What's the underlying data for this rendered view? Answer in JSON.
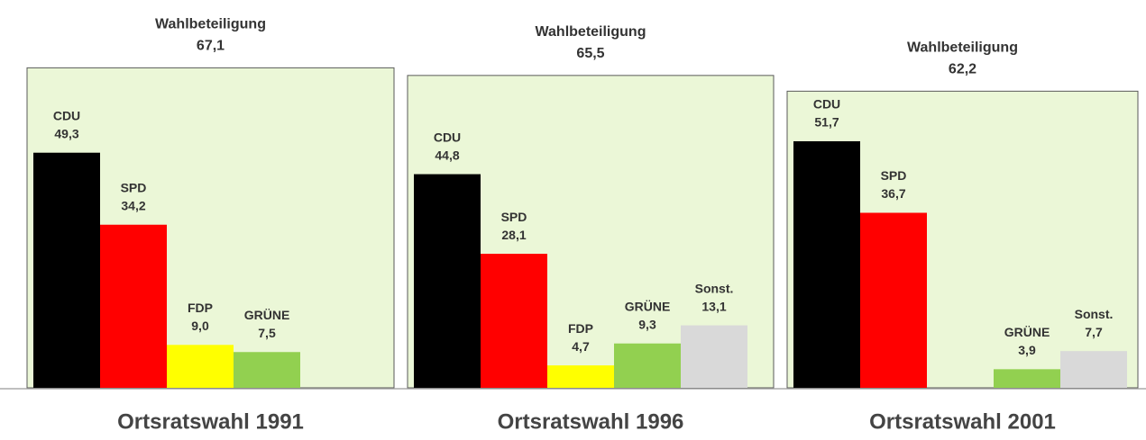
{
  "chart_data": [
    {
      "type": "bar",
      "title": "Ortsratswahl 1991",
      "subtitle": "Wahlbeteiligung",
      "turnout": 67.1,
      "turnout_label": "67,1",
      "categories": [
        "CDU",
        "SPD",
        "FDP",
        "GRÜNE"
      ],
      "values": [
        49.3,
        34.2,
        9.0,
        7.5
      ],
      "value_labels": [
        "49,3",
        "34,2",
        "9,0",
        "7,5"
      ],
      "colors": [
        "#000000",
        "#ff0000",
        "#ffff00",
        "#92d050"
      ]
    },
    {
      "type": "bar",
      "title": "Ortsratswahl 1996",
      "subtitle": "Wahlbeteiligung",
      "turnout": 65.5,
      "turnout_label": "65,5",
      "categories": [
        "CDU",
        "SPD",
        "FDP",
        "GRÜNE",
        "Sonst."
      ],
      "values": [
        44.8,
        28.1,
        4.7,
        9.3,
        13.1
      ],
      "value_labels": [
        "44,8",
        "28,1",
        "4,7",
        "9,3",
        "13,1"
      ],
      "colors": [
        "#000000",
        "#ff0000",
        "#ffff00",
        "#92d050",
        "#d9d9d9"
      ]
    },
    {
      "type": "bar",
      "title": "Ortsratswahl 2001",
      "subtitle": "Wahlbeteiligung",
      "turnout": 62.2,
      "turnout_label": "62,2",
      "categories": [
        "CDU",
        "SPD",
        null,
        "GRÜNE",
        "Sonst."
      ],
      "values": [
        51.7,
        36.7,
        null,
        3.9,
        7.7
      ],
      "value_labels": [
        "51,7",
        "36,7",
        null,
        "3,9",
        "7,7"
      ],
      "colors": [
        "#000000",
        "#ff0000",
        "#ffff00",
        "#92d050",
        "#d9d9d9"
      ]
    }
  ]
}
